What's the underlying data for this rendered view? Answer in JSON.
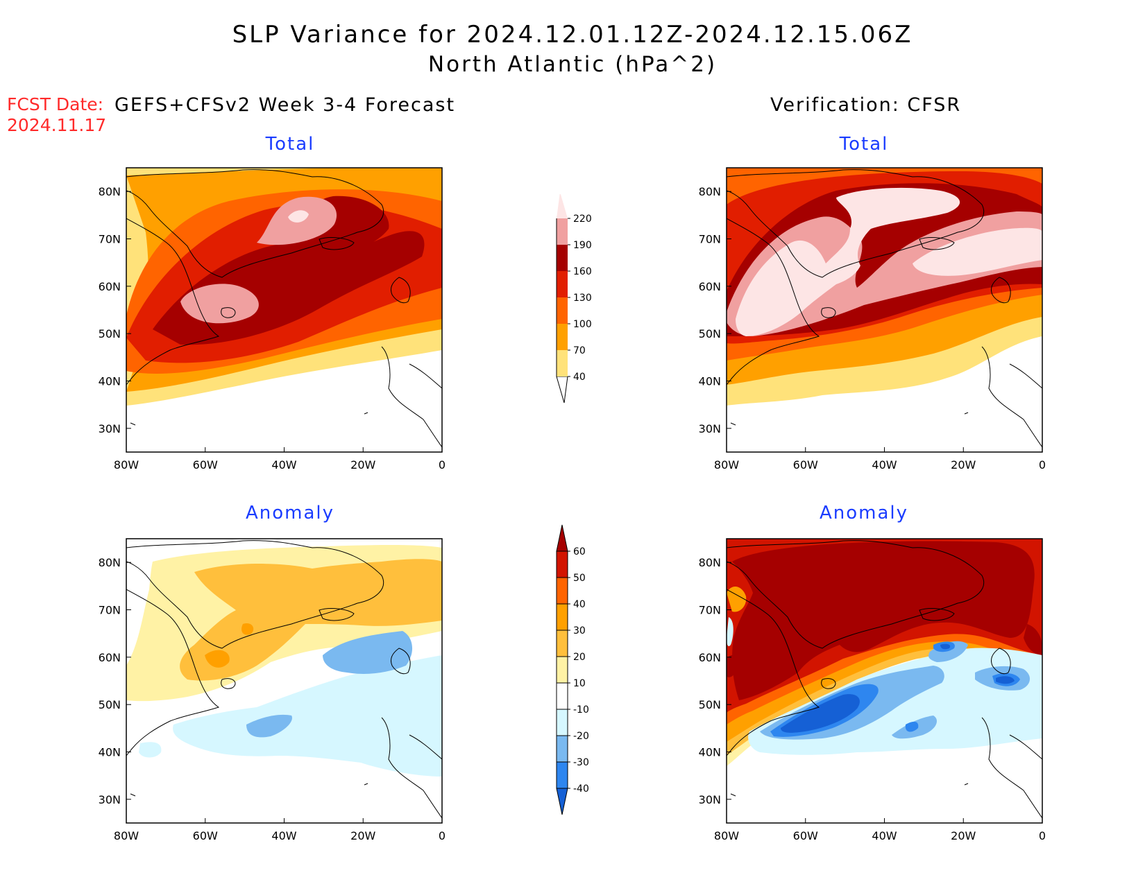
{
  "title": {
    "line1": "SLP Variance for 2024.12.01.12Z-2024.12.15.06Z",
    "line2": "North Atlantic (hPa^2)"
  },
  "forecast": {
    "date_label": "FCST Date:",
    "date_value": "2024.11.17"
  },
  "headers": {
    "left": "GEFS+CFSv2 Week 3-4 Forecast",
    "right": "Verification: CFSR"
  },
  "panel_titles": {
    "total": "Total",
    "anomaly": "Anomaly"
  },
  "axes": {
    "lon_ticks": [
      "80W",
      "60W",
      "40W",
      "20W",
      "0"
    ],
    "lat_ticks": [
      "80N",
      "70N",
      "60N",
      "50N",
      "40N",
      "30N"
    ]
  },
  "colorbars": {
    "total": {
      "levels": [
        "40",
        "70",
        "100",
        "130",
        "160",
        "190",
        "220"
      ],
      "colors": [
        "#ffe27a",
        "#ffa000",
        "#ff6400",
        "#e11e00",
        "#a50000",
        "#f0a0a0",
        "#fde5e5"
      ]
    },
    "anomaly": {
      "levels": [
        "-40",
        "-30",
        "-20",
        "-10",
        "10",
        "20",
        "30",
        "40",
        "50",
        "60"
      ],
      "colors": [
        "#1560d5",
        "#2e86ef",
        "#7ab9f0",
        "#d6f7ff",
        "#ffffff",
        "#fff2a5",
        "#ffbf3c",
        "#ffa000",
        "#ff6400",
        "#d21400",
        "#a50000"
      ]
    }
  }
}
